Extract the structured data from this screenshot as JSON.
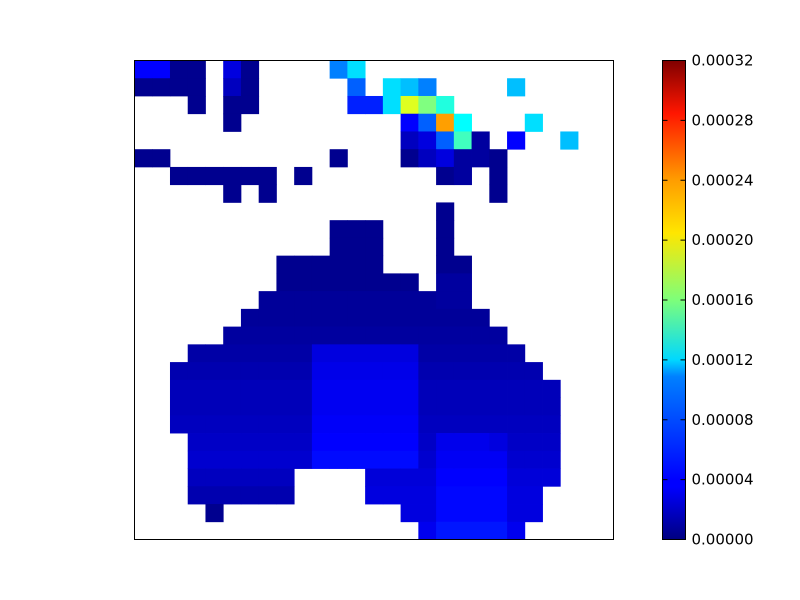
{
  "chart_data": {
    "type": "heatmap",
    "title": "",
    "xlabel": "",
    "ylabel": "",
    "colormap": "jet",
    "vmin": 0.0,
    "vmax": 0.00032,
    "grid_rows": 27,
    "grid_cols": 27,
    "x_ticks": [],
    "y_ticks": [],
    "colorbar": {
      "ticks": [
        0.0,
        4e-05,
        8e-05,
        0.00012,
        0.00016,
        0.0002,
        0.00024,
        0.00028,
        0.00032
      ],
      "tick_labels": [
        "0.00000",
        "0.00004",
        "0.00008",
        "0.00012",
        "0.00016",
        "0.00020",
        "0.00024",
        "0.00028",
        "0.00032"
      ]
    },
    "cells": [
      {
        "row": 0,
        "col": 0,
        "value": 4e-05
      },
      {
        "row": 0,
        "col": 1,
        "value": 4e-05
      },
      {
        "row": 0,
        "col": 2,
        "value": 5e-06
      },
      {
        "row": 0,
        "col": 3,
        "value": 5e-06
      },
      {
        "row": 0,
        "col": 5,
        "value": 3e-05
      },
      {
        "row": 0,
        "col": 6,
        "value": 5e-06
      },
      {
        "row": 0,
        "col": 11,
        "value": 8e-05
      },
      {
        "row": 0,
        "col": 12,
        "value": 0.00011
      },
      {
        "row": 1,
        "col": 0,
        "value": 5e-06
      },
      {
        "row": 1,
        "col": 1,
        "value": 5e-06
      },
      {
        "row": 1,
        "col": 2,
        "value": 5e-06
      },
      {
        "row": 1,
        "col": 3,
        "value": 5e-06
      },
      {
        "row": 1,
        "col": 5,
        "value": 2e-05
      },
      {
        "row": 1,
        "col": 6,
        "value": 5e-06
      },
      {
        "row": 1,
        "col": 12,
        "value": 7e-05
      },
      {
        "row": 1,
        "col": 14,
        "value": 0.00011
      },
      {
        "row": 1,
        "col": 15,
        "value": 0.0001
      },
      {
        "row": 1,
        "col": 16,
        "value": 8e-05
      },
      {
        "row": 1,
        "col": 21,
        "value": 0.0001
      },
      {
        "row": 2,
        "col": 3,
        "value": 5e-06
      },
      {
        "row": 2,
        "col": 5,
        "value": 5e-06
      },
      {
        "row": 2,
        "col": 6,
        "value": 5e-06
      },
      {
        "row": 2,
        "col": 12,
        "value": 5e-05
      },
      {
        "row": 2,
        "col": 13,
        "value": 5e-05
      },
      {
        "row": 2,
        "col": 14,
        "value": 0.00011
      },
      {
        "row": 2,
        "col": 15,
        "value": 0.00019
      },
      {
        "row": 2,
        "col": 16,
        "value": 0.00016
      },
      {
        "row": 2,
        "col": 17,
        "value": 0.00013
      },
      {
        "row": 3,
        "col": 5,
        "value": 5e-06
      },
      {
        "row": 3,
        "col": 15,
        "value": 4e-05
      },
      {
        "row": 3,
        "col": 16,
        "value": 7e-05
      },
      {
        "row": 3,
        "col": 17,
        "value": 0.00023
      },
      {
        "row": 3,
        "col": 18,
        "value": 0.00012
      },
      {
        "row": 3,
        "col": 22,
        "value": 0.00011
      },
      {
        "row": 4,
        "col": 15,
        "value": 2e-05
      },
      {
        "row": 4,
        "col": 16,
        "value": 3e-05
      },
      {
        "row": 4,
        "col": 17,
        "value": 7e-05
      },
      {
        "row": 4,
        "col": 18,
        "value": 0.00014
      },
      {
        "row": 4,
        "col": 19,
        "value": 1e-05
      },
      {
        "row": 4,
        "col": 21,
        "value": 4e-05
      },
      {
        "row": 4,
        "col": 24,
        "value": 0.0001
      },
      {
        "row": 5,
        "col": 0,
        "value": 5e-06
      },
      {
        "row": 5,
        "col": 1,
        "value": 5e-06
      },
      {
        "row": 5,
        "col": 11,
        "value": 5e-06
      },
      {
        "row": 5,
        "col": 15,
        "value": 5e-06
      },
      {
        "row": 5,
        "col": 16,
        "value": 2e-05
      },
      {
        "row": 5,
        "col": 17,
        "value": 3e-05
      },
      {
        "row": 5,
        "col": 18,
        "value": 1e-05
      },
      {
        "row": 5,
        "col": 19,
        "value": 1e-05
      },
      {
        "row": 5,
        "col": 20,
        "value": 5e-06
      },
      {
        "row": 6,
        "col": 2,
        "value": 5e-06
      },
      {
        "row": 6,
        "col": 3,
        "value": 5e-06
      },
      {
        "row": 6,
        "col": 4,
        "value": 5e-06
      },
      {
        "row": 6,
        "col": 5,
        "value": 5e-06
      },
      {
        "row": 6,
        "col": 6,
        "value": 5e-06
      },
      {
        "row": 6,
        "col": 7,
        "value": 5e-06
      },
      {
        "row": 6,
        "col": 9,
        "value": 5e-06
      },
      {
        "row": 6,
        "col": 17,
        "value": 5e-06
      },
      {
        "row": 6,
        "col": 18,
        "value": 1e-05
      },
      {
        "row": 6,
        "col": 20,
        "value": 5e-06
      },
      {
        "row": 7,
        "col": 5,
        "value": 5e-06
      },
      {
        "row": 7,
        "col": 7,
        "value": 5e-06
      },
      {
        "row": 7,
        "col": 20,
        "value": 5e-06
      },
      {
        "row": 26,
        "col": 0,
        "value": null
      }
    ],
    "mainland": {
      "rows": [
        {
          "row": 6,
          "segments": []
        },
        {
          "row": 7,
          "segments": []
        },
        {
          "row": 8,
          "segments": [
            [
              17,
              17,
              5e-06
            ]
          ]
        },
        {
          "row": 9,
          "segments": [
            [
              11,
              13,
              5e-06
            ],
            [
              17,
              17,
              5e-06
            ]
          ]
        },
        {
          "row": 10,
          "segments": [
            [
              11,
              13,
              5e-06
            ],
            [
              17,
              17,
              5e-06
            ]
          ]
        },
        {
          "row": 11,
          "segments": [
            [
              8,
              13,
              5e-06
            ],
            [
              17,
              18,
              5e-06
            ]
          ]
        },
        {
          "row": 12,
          "segments": [
            [
              8,
              15,
              5e-06
            ],
            [
              17,
              18,
              1e-05
            ]
          ]
        },
        {
          "row": 13,
          "segments": [
            [
              7,
              16,
              8e-06
            ],
            [
              17,
              18,
              1e-05
            ]
          ]
        },
        {
          "row": 14,
          "segments": [
            [
              6,
              19,
              8e-06
            ]
          ]
        },
        {
          "row": 15,
          "segments": [
            [
              5,
              20,
              1e-05
            ]
          ]
        },
        {
          "row": 16,
          "segments": [
            [
              3,
              21,
              1.2e-05
            ]
          ]
        },
        {
          "row": 17,
          "segments": [
            [
              2,
              22,
              1.5e-05
            ]
          ]
        },
        {
          "row": 18,
          "segments": [
            [
              2,
              23,
              1.8e-05
            ]
          ]
        },
        {
          "row": 19,
          "segments": [
            [
              2,
              23,
              1.8e-05
            ]
          ]
        },
        {
          "row": 20,
          "segments": [
            [
              2,
              23,
              2e-05
            ]
          ]
        },
        {
          "row": 21,
          "segments": [
            [
              3,
              23,
              2.2e-05
            ]
          ]
        },
        {
          "row": 22,
          "segments": [
            [
              3,
              23,
              2.5e-05
            ]
          ]
        },
        {
          "row": 23,
          "segments": [
            [
              3,
              8,
              2e-05
            ],
            [
              13,
              23,
              2.8e-05
            ]
          ]
        },
        {
          "row": 24,
          "segments": [
            [
              3,
              8,
              1.5e-05
            ],
            [
              13,
              22,
              3e-05
            ]
          ]
        },
        {
          "row": 25,
          "segments": [
            [
              4,
              4,
              5e-06
            ],
            [
              15,
              22,
              3e-05
            ]
          ]
        },
        {
          "row": 26,
          "segments": [
            [
              16,
              21,
              3.5e-05
            ]
          ]
        }
      ]
    }
  }
}
